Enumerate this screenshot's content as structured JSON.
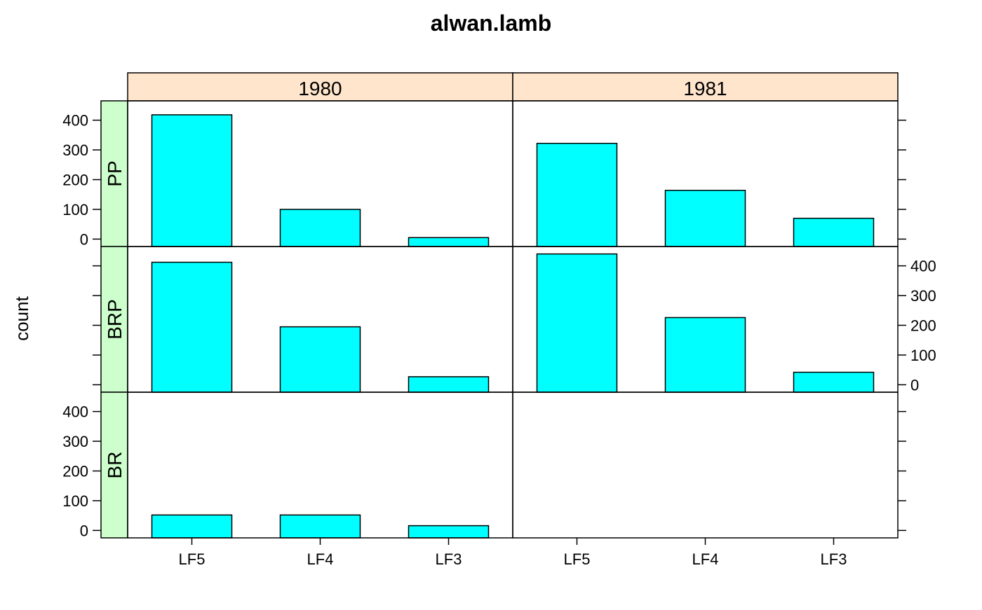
{
  "chart_data": {
    "type": "bar",
    "title": "alwan.lamb",
    "xlabel": "",
    "ylabel": "count",
    "categories": [
      "LF5",
      "LF4",
      "LF3"
    ],
    "columns": [
      "1980",
      "1981"
    ],
    "rows": [
      "PP",
      "BRP",
      "BR"
    ],
    "ylim": [
      -25,
      465
    ],
    "yticks": [
      0,
      100,
      200,
      300,
      400
    ],
    "grid": false,
    "legend": "none",
    "panels": [
      {
        "row": "PP",
        "column": "1980",
        "values": [
          418,
          100,
          5
        ]
      },
      {
        "row": "PP",
        "column": "1981",
        "values": [
          322,
          164,
          70
        ]
      },
      {
        "row": "BRP",
        "column": "1980",
        "values": [
          412,
          195,
          27
        ]
      },
      {
        "row": "BRP",
        "column": "1981",
        "values": [
          440,
          226,
          42
        ]
      },
      {
        "row": "BR",
        "column": "1980",
        "values": [
          52,
          52,
          16
        ]
      },
      {
        "row": "BR",
        "column": "1981",
        "values": [
          0,
          0,
          0
        ]
      }
    ],
    "colors": {
      "bar_fill": "#00FFFF",
      "bar_stroke": "#000000",
      "column_strip": "#FFE5CC",
      "row_strip": "#CCFFCC"
    }
  }
}
